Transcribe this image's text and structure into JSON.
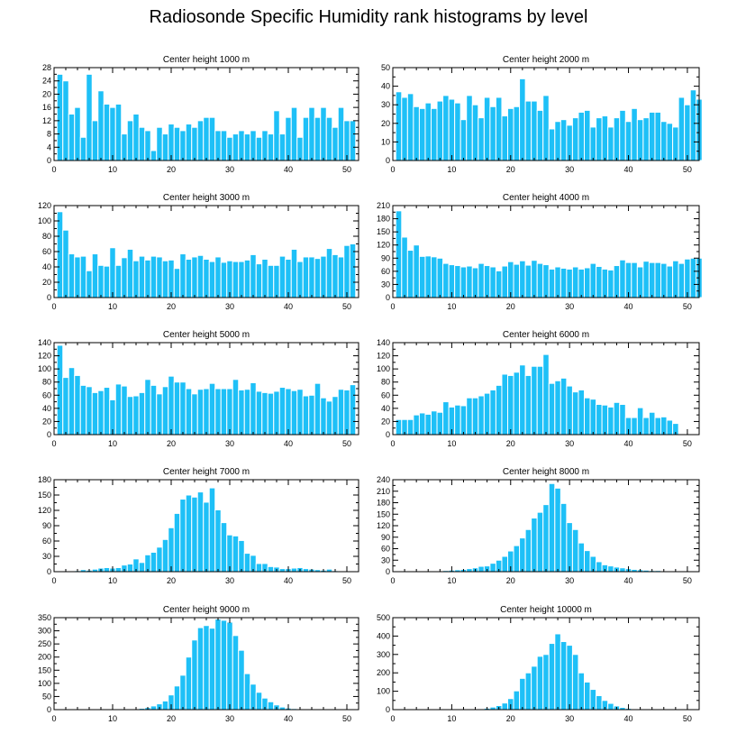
{
  "title": "Radiosonde Specific Humidity rank histograms by level",
  "colors": {
    "bar": "#1ec0f7",
    "bar_edge": "#ffffff",
    "axis": "#000000",
    "background": "#ffffff"
  },
  "chart_data": [
    {
      "type": "bar",
      "title": "Center height 1000 m",
      "xlim": [
        0,
        52
      ],
      "ylim": [
        0,
        28
      ],
      "xticks": [
        0,
        10,
        20,
        30,
        40,
        50
      ],
      "yticks": [
        0,
        4,
        8,
        12,
        16,
        20,
        24,
        28
      ],
      "x_start": 1,
      "values": [
        26,
        24,
        14,
        16,
        7,
        26,
        12,
        21,
        17,
        16,
        17,
        8,
        12,
        14,
        10,
        9,
        3,
        10,
        8,
        11,
        10,
        9,
        11,
        10,
        12,
        13,
        13,
        9,
        9,
        7,
        8,
        9,
        8,
        9,
        7,
        9,
        8,
        15,
        8,
        13,
        16,
        7,
        13,
        16,
        13,
        16,
        13,
        10,
        16,
        12,
        12
      ]
    },
    {
      "type": "bar",
      "title": "Center height 2000 m",
      "xlim": [
        0,
        52
      ],
      "ylim": [
        0,
        50
      ],
      "xticks": [
        0,
        10,
        20,
        30,
        40,
        50
      ],
      "yticks": [
        0,
        10,
        20,
        30,
        40,
        50
      ],
      "x_start": 1,
      "values": [
        37,
        34,
        36,
        29,
        28,
        31,
        28,
        32,
        35,
        33,
        31,
        22,
        35,
        30,
        23,
        34,
        29,
        34,
        24,
        28,
        29,
        44,
        32,
        32,
        27,
        35,
        17,
        21,
        22,
        19,
        23,
        26,
        27,
        18,
        23,
        24,
        18,
        23,
        27,
        21,
        28,
        22,
        23,
        26,
        26,
        21,
        20,
        18,
        34,
        30,
        38,
        33
      ]
    },
    {
      "type": "bar",
      "title": "Center height 3000 m",
      "xlim": [
        0,
        52
      ],
      "ylim": [
        0,
        120
      ],
      "xticks": [
        0,
        10,
        20,
        30,
        40,
        50
      ],
      "yticks": [
        0,
        20,
        40,
        60,
        80,
        100,
        120
      ],
      "x_start": 1,
      "values": [
        112,
        88,
        57,
        53,
        54,
        35,
        57,
        42,
        41,
        65,
        42,
        52,
        63,
        48,
        54,
        49,
        54,
        53,
        48,
        49,
        38,
        57,
        50,
        53,
        55,
        50,
        47,
        53,
        46,
        48,
        47,
        47,
        49,
        56,
        44,
        50,
        42,
        42,
        54,
        50,
        63,
        47,
        53,
        53,
        51,
        54,
        64,
        56,
        53,
        68,
        70
      ]
    },
    {
      "type": "bar",
      "title": "Center height 4000 m",
      "xlim": [
        0,
        52
      ],
      "ylim": [
        0,
        210
      ],
      "xticks": [
        0,
        10,
        20,
        30,
        40,
        50
      ],
      "yticks": [
        0,
        30,
        60,
        90,
        120,
        150,
        180,
        210
      ],
      "x_start": 1,
      "values": [
        198,
        138,
        108,
        120,
        94,
        95,
        93,
        90,
        78,
        75,
        73,
        70,
        72,
        68,
        78,
        73,
        70,
        61,
        72,
        82,
        76,
        84,
        74,
        85,
        78,
        75,
        65,
        70,
        67,
        65,
        70,
        65,
        68,
        78,
        71,
        65,
        63,
        73,
        86,
        80,
        80,
        70,
        83,
        80,
        80,
        78,
        72,
        84,
        78,
        88,
        90,
        90
      ]
    },
    {
      "type": "bar",
      "title": "Center height 5000 m",
      "xlim": [
        0,
        52
      ],
      "ylim": [
        0,
        140
      ],
      "xticks": [
        0,
        10,
        20,
        30,
        40,
        50
      ],
      "yticks": [
        0,
        20,
        40,
        60,
        80,
        100,
        120,
        140
      ],
      "x_start": 1,
      "values": [
        136,
        87,
        102,
        90,
        75,
        73,
        64,
        67,
        72,
        53,
        77,
        74,
        58,
        59,
        64,
        84,
        75,
        62,
        73,
        89,
        80,
        80,
        70,
        62,
        69,
        70,
        78,
        70,
        70,
        70,
        84,
        68,
        69,
        79,
        66,
        64,
        63,
        66,
        72,
        70,
        67,
        69,
        59,
        60,
        78,
        56,
        51,
        58,
        69,
        68,
        76
      ]
    },
    {
      "type": "bar",
      "title": "Center height 6000 m",
      "xlim": [
        0,
        52
      ],
      "ylim": [
        0,
        140
      ],
      "xticks": [
        0,
        10,
        20,
        30,
        40,
        50
      ],
      "yticks": [
        0,
        20,
        40,
        60,
        80,
        100,
        120,
        140
      ],
      "x_start": 1,
      "values": [
        23,
        23,
        23,
        30,
        33,
        31,
        36,
        34,
        50,
        42,
        45,
        44,
        56,
        56,
        59,
        63,
        68,
        75,
        92,
        90,
        95,
        106,
        90,
        104,
        104,
        122,
        78,
        82,
        86,
        74,
        65,
        68,
        56,
        54,
        46,
        45,
        42,
        49,
        46,
        26,
        26,
        41,
        26,
        34,
        26,
        27,
        22,
        17
      ]
    },
    {
      "type": "bar",
      "title": "Center height 7000 m",
      "xlim": [
        0,
        52
      ],
      "ylim": [
        0,
        180
      ],
      "xticks": [
        0,
        10,
        20,
        30,
        40,
        50
      ],
      "yticks": [
        0,
        30,
        60,
        90,
        120,
        150,
        180
      ],
      "x_start": 1,
      "values": [
        0,
        0,
        1,
        2,
        4,
        3,
        5,
        7,
        8,
        7,
        8,
        13,
        15,
        25,
        18,
        33,
        38,
        48,
        63,
        86,
        114,
        142,
        150,
        146,
        156,
        136,
        164,
        121,
        96,
        72,
        70,
        61,
        36,
        32,
        16,
        16,
        10,
        9,
        6,
        6,
        7,
        8,
        6,
        5,
        4,
        3,
        5,
        2,
        1,
        0,
        0,
        0
      ]
    },
    {
      "type": "bar",
      "title": "Center height 8000 m",
      "xlim": [
        0,
        52
      ],
      "ylim": [
        0,
        240
      ],
      "xticks": [
        0,
        10,
        20,
        30,
        40,
        50
      ],
      "yticks": [
        0,
        30,
        60,
        90,
        120,
        150,
        180,
        210,
        240
      ],
      "x_start": 1,
      "values": [
        0,
        0,
        0,
        0,
        1,
        1,
        2,
        2,
        3,
        4,
        5,
        6,
        8,
        10,
        14,
        15,
        22,
        30,
        40,
        54,
        68,
        88,
        110,
        140,
        155,
        175,
        230,
        218,
        178,
        128,
        110,
        75,
        55,
        40,
        26,
        18,
        15,
        12,
        10,
        8,
        6,
        5,
        4,
        3,
        3,
        2,
        2,
        1,
        1,
        0,
        0,
        0
      ]
    },
    {
      "type": "bar",
      "title": "Center height 9000 m",
      "xlim": [
        0,
        52
      ],
      "ylim": [
        0,
        350
      ],
      "xticks": [
        0,
        10,
        20,
        30,
        40,
        50
      ],
      "yticks": [
        0,
        50,
        100,
        150,
        200,
        250,
        300,
        350
      ],
      "x_start": 1,
      "values": [
        0,
        0,
        0,
        0,
        0,
        0,
        0,
        0,
        0,
        1,
        1,
        1,
        2,
        3,
        5,
        8,
        14,
        22,
        33,
        56,
        90,
        131,
        200,
        265,
        312,
        320,
        310,
        345,
        340,
        333,
        282,
        226,
        137,
        97,
        66,
        44,
        30,
        18,
        10,
        6,
        4,
        3,
        2,
        1,
        1,
        1,
        0,
        0,
        0,
        0,
        0,
        0
      ]
    },
    {
      "type": "bar",
      "title": "Center height 10000 m",
      "xlim": [
        0,
        52
      ],
      "ylim": [
        0,
        500
      ],
      "xticks": [
        0,
        10,
        20,
        30,
        40,
        50
      ],
      "yticks": [
        0,
        100,
        200,
        300,
        400,
        500
      ],
      "x_start": 1,
      "values": [
        0,
        0,
        0,
        0,
        0,
        0,
        0,
        0,
        0,
        0,
        0,
        1,
        2,
        3,
        5,
        8,
        14,
        22,
        36,
        60,
        102,
        170,
        200,
        236,
        290,
        300,
        360,
        412,
        370,
        350,
        300,
        200,
        150,
        110,
        76,
        50,
        34,
        20,
        12,
        7,
        4,
        3,
        2,
        1,
        1,
        1,
        0,
        0,
        0,
        0,
        0,
        0
      ]
    }
  ]
}
